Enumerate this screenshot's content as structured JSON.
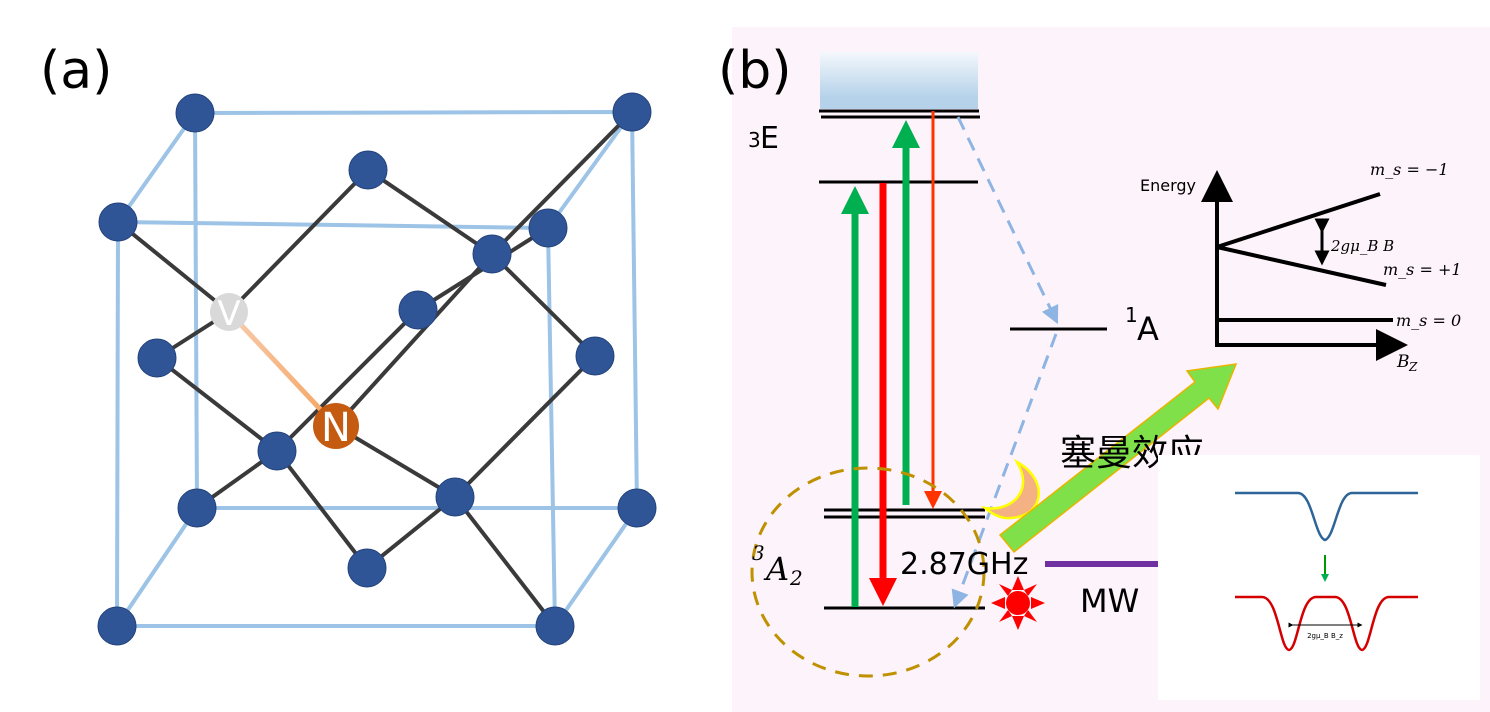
{
  "panel_a": {
    "label": "(a)",
    "vacancy_label": "V",
    "nitrogen_label": "N",
    "colors": {
      "carbon": "#2F5597",
      "vacancy": "#D9D9D9",
      "nitrogen": "#C55A11",
      "cube_edge": "#9DC3E6",
      "bond": "#3A3A3A"
    }
  },
  "panel_b": {
    "label": "(b)",
    "excited_state": "E",
    "excited_state_sup": "3",
    "singlet_state": "A",
    "singlet_state_sup": "1",
    "ground_state": "A",
    "ground_state_sup": "3",
    "ground_state_sub": "2",
    "zero_field_splitting": "2.87GHz",
    "zeeman_label": "塞曼效应",
    "mw_label": "MW",
    "colors": {
      "background": "#FDF3FA",
      "green": "#00B050",
      "red": "#FF0000",
      "purple": "#7030A0",
      "arrow_green": "#7FE04A",
      "dashed": "#8EB4E3",
      "ellipse": "#BF9000"
    }
  },
  "zeeman_plot": {
    "y_axis_label": "Energy",
    "x_axis_label": "B",
    "x_axis_sub": "Z",
    "ms_minus1": "m_s = −1",
    "ms_plus1": "m_s = +1",
    "ms_zero": "m_s = 0",
    "splitting_label": "2gμ_B B"
  },
  "odmr_inset": {
    "splitting_label": "2gμ_B B_z",
    "colors": {
      "single_dip": "#2E6599",
      "split_dips": "#D40000",
      "arrow": "#009900"
    }
  }
}
